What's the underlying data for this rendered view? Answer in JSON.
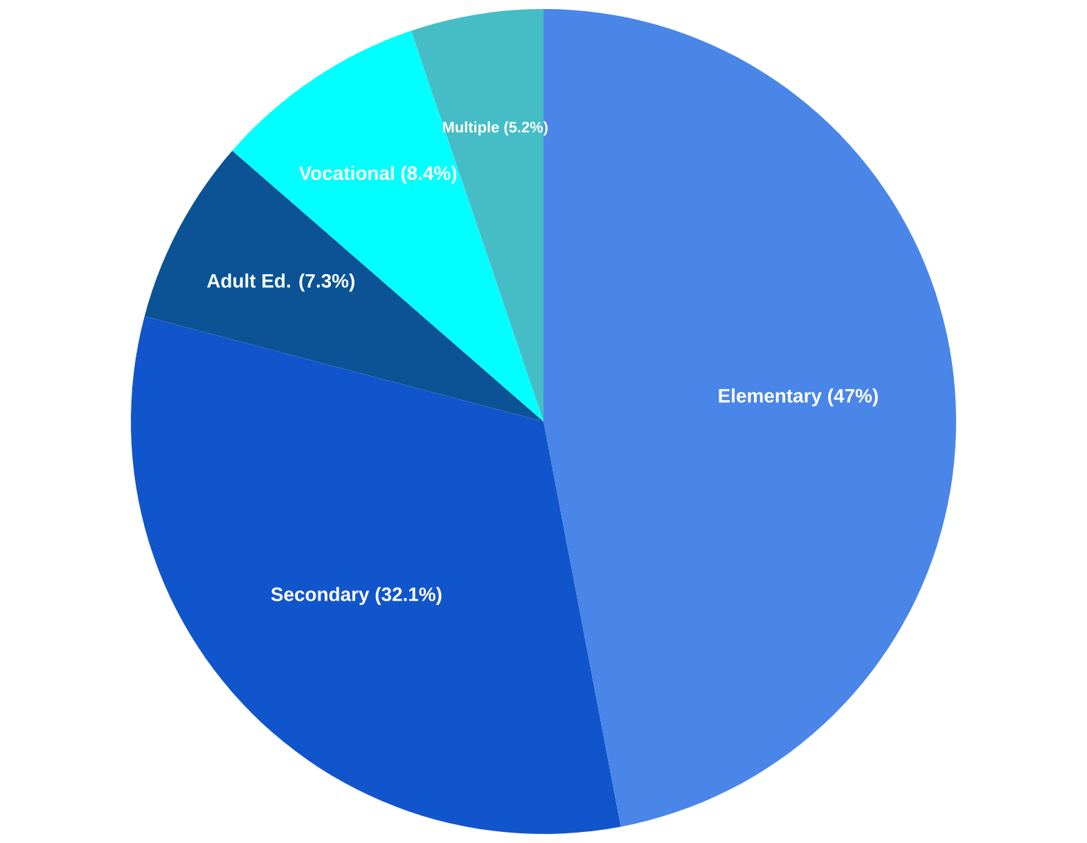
{
  "chart_data": {
    "type": "pie",
    "categories": [
      "Elementary",
      "Secondary",
      "Adult Ed.",
      "Vocational",
      "Multiple"
    ],
    "values": [
      47,
      32.1,
      7.3,
      8.4,
      5.2
    ],
    "value_labels": [
      "(47%)",
      "(32.1%)",
      "(7.3%)",
      "(8.4%)",
      "(5.2%)"
    ],
    "colors": [
      "#4a86e8",
      "#1155cc",
      "#0b5394",
      "#00ffff",
      "#46bdc6"
    ]
  }
}
